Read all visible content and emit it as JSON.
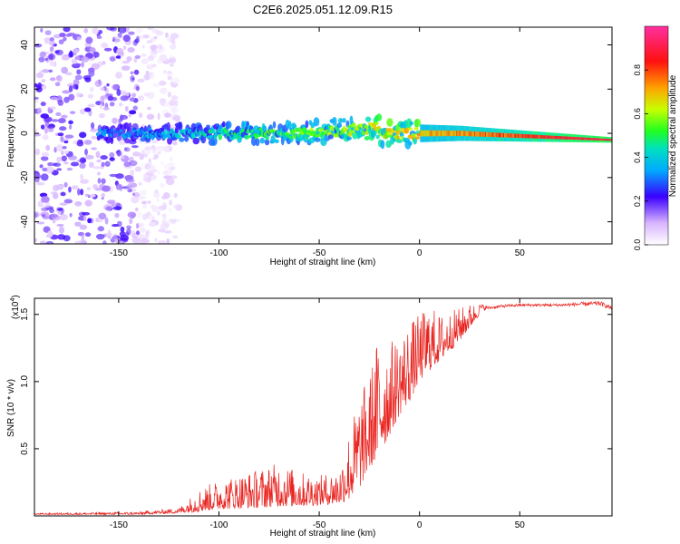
{
  "title": "C2E6.2025.051.12.09.R15",
  "chart_data": [
    {
      "id": "spectrogram",
      "type": "heatmap",
      "xlabel": "Height of straight line (km)",
      "ylabel": "Frequency (Hz)",
      "xlim": [
        -192,
        96
      ],
      "ylim": [
        -50,
        48
      ],
      "xticks": [
        -150,
        -100,
        -50,
        0,
        50
      ],
      "yticks": [
        -40,
        -20,
        0,
        20,
        40
      ],
      "colorbar": {
        "label": "Normalized spectral amplitude",
        "range": [
          0.0,
          1.0
        ],
        "ticks": [
          "0.0",
          "0.2",
          "0.4",
          "0.6",
          "0.8"
        ],
        "tick_values": [
          0.0,
          0.2,
          0.4,
          0.6,
          0.8
        ]
      },
      "features": {
        "noise_region_x": [
          -192,
          -140
        ],
        "band_center_freq": 0,
        "band_end_freq": -3,
        "band_amplitude_start": 0.3,
        "band_amplitude_end": 0.92
      }
    },
    {
      "id": "snr",
      "type": "line",
      "xlabel": "Height of straight line (km)",
      "ylabel": "SNR (10 * v/v)",
      "y_scale_label": "(x10",
      "y_scale_exp": "4",
      "y_scale_close": ")",
      "xlim": [
        -192,
        96
      ],
      "ylim": [
        0,
        1.62
      ],
      "xticks": [
        -150,
        -100,
        -50,
        0,
        50
      ],
      "yticks": [
        0.5,
        1.0,
        1.5
      ],
      "ytick_labels": [
        "0.5",
        "1.0",
        "1.5"
      ],
      "series": [
        {
          "name": "SNR",
          "color": "#e8231f",
          "envelope_x": [
            -192,
            -140,
            -120,
            -110,
            -100,
            -80,
            -70,
            -60,
            -50,
            -40,
            -35,
            -30,
            -25,
            -20,
            -15,
            -10,
            -5,
            0,
            5,
            10,
            20,
            25,
            30,
            35,
            40,
            50,
            60,
            70,
            80,
            90,
            96
          ],
          "envelope_low": [
            0.01,
            0.01,
            0.02,
            0.03,
            0.05,
            0.06,
            0.07,
            0.07,
            0.08,
            0.09,
            0.12,
            0.2,
            0.35,
            0.45,
            0.6,
            0.75,
            0.85,
            1.0,
            1.08,
            1.15,
            1.3,
            1.4,
            1.5,
            1.53,
            1.54,
            1.55,
            1.55,
            1.55,
            1.55,
            1.55,
            1.52
          ],
          "envelope_high": [
            0.02,
            0.03,
            0.06,
            0.2,
            0.27,
            0.35,
            0.4,
            0.33,
            0.3,
            0.35,
            0.65,
            0.9,
            1.05,
            1.4,
            1.3,
            1.35,
            1.45,
            1.5,
            1.58,
            1.5,
            1.55,
            1.58,
            1.58,
            1.56,
            1.57,
            1.58,
            1.58,
            1.58,
            1.59,
            1.6,
            1.56
          ]
        }
      ]
    }
  ]
}
